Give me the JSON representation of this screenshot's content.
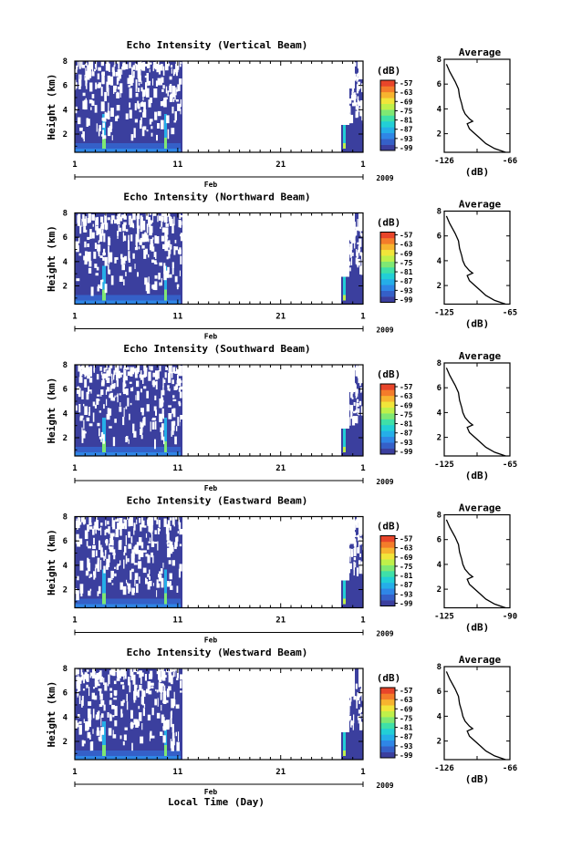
{
  "chart_data": {
    "type": "heatmap",
    "panels": [
      {
        "title": "Echo Intensity (Vertical Beam)",
        "avg_xticks": [
          "-126",
          "-66"
        ],
        "avg_xlim": [
          -126,
          -66
        ]
      },
      {
        "title": "Echo Intensity (Northward Beam)",
        "avg_xticks": [
          "-125",
          "-65"
        ],
        "avg_xlim": [
          -125,
          -65
        ]
      },
      {
        "title": "Echo Intensity (Southward Beam)",
        "avg_xticks": [
          "-125",
          "-65"
        ],
        "avg_xlim": [
          -125,
          -65
        ]
      },
      {
        "title": "Echo Intensity (Eastward Beam)",
        "avg_xticks": [
          "-125",
          "-90"
        ],
        "avg_xlim": [
          -125,
          -90
        ]
      },
      {
        "title": "Echo Intensity (Westward Beam)",
        "avg_xticks": [
          "-126",
          "-66"
        ],
        "avg_xlim": [
          -126,
          -66
        ]
      }
    ],
    "ylabel": "Height (km)",
    "yticks": [
      "2",
      "4",
      "6",
      "8"
    ],
    "ylim": [
      0.5,
      8
    ],
    "xticks": [
      "1",
      "11",
      "21",
      "1"
    ],
    "month_label": "Feb",
    "year_label": "2009",
    "xlabel": "Local Time (Day)",
    "colorbar": {
      "unit": "(dB)",
      "ticks": [
        "-57",
        "-63",
        "-69",
        "-75",
        "-81",
        "-87",
        "-93",
        "-99"
      ],
      "colors": [
        "#3b3f9e",
        "#3560c8",
        "#2f86e6",
        "#25aee8",
        "#22cfd6",
        "#3fe0a8",
        "#7fe873",
        "#bff04a",
        "#f1e53a",
        "#f7b42f",
        "#f47c2a",
        "#e8452a"
      ]
    },
    "avg_title": "Average",
    "avg_xlabel": "(dB)",
    "avg_yticks": [
      "2",
      "4",
      "6",
      "8"
    ],
    "avg_profile": [
      {
        "h": 0.5,
        "v": -70
      },
      {
        "h": 0.8,
        "v": -80
      },
      {
        "h": 1.2,
        "v": -88
      },
      {
        "h": 1.6,
        "v": -93
      },
      {
        "h": 2.0,
        "v": -98
      },
      {
        "h": 2.4,
        "v": -103
      },
      {
        "h": 2.8,
        "v": -105
      },
      {
        "h": 3.0,
        "v": -100
      },
      {
        "h": 3.2,
        "v": -103
      },
      {
        "h": 3.6,
        "v": -107
      },
      {
        "h": 4.0,
        "v": -109
      },
      {
        "h": 4.4,
        "v": -110
      },
      {
        "h": 5.0,
        "v": -112
      },
      {
        "h": 5.6,
        "v": -113
      },
      {
        "h": 6.2,
        "v": -116
      },
      {
        "h": 7.0,
        "v": -121
      },
      {
        "h": 7.6,
        "v": -124
      }
    ]
  }
}
